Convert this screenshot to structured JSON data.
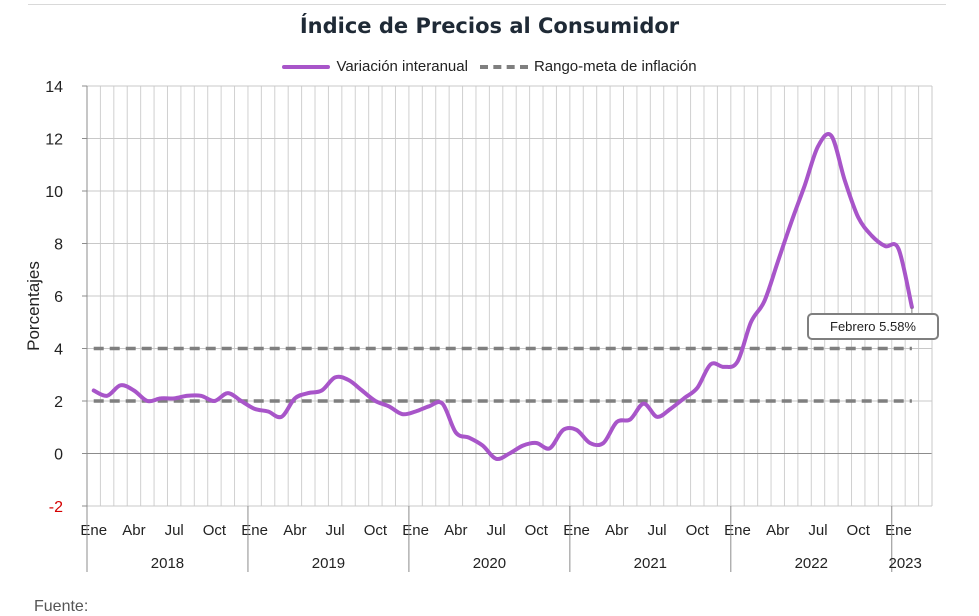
{
  "chart_data": {
    "type": "line",
    "title": "Índice de Precios al Consumidor",
    "ylabel": "Porcentajes",
    "xlabel": "",
    "ylim": [
      -2,
      14
    ],
    "yticks": [
      -2,
      0,
      2,
      4,
      6,
      8,
      10,
      12,
      14
    ],
    "grid": true,
    "legend_position": "top-center",
    "months": [
      "2018-01",
      "2018-02",
      "2018-03",
      "2018-04",
      "2018-05",
      "2018-06",
      "2018-07",
      "2018-08",
      "2018-09",
      "2018-10",
      "2018-11",
      "2018-12",
      "2019-01",
      "2019-02",
      "2019-03",
      "2019-04",
      "2019-05",
      "2019-06",
      "2019-07",
      "2019-08",
      "2019-09",
      "2019-10",
      "2019-11",
      "2019-12",
      "2020-01",
      "2020-02",
      "2020-03",
      "2020-04",
      "2020-05",
      "2020-06",
      "2020-07",
      "2020-08",
      "2020-09",
      "2020-10",
      "2020-11",
      "2020-12",
      "2021-01",
      "2021-02",
      "2021-03",
      "2021-04",
      "2021-05",
      "2021-06",
      "2021-07",
      "2021-08",
      "2021-09",
      "2021-10",
      "2021-11",
      "2021-12",
      "2022-01",
      "2022-02",
      "2022-03",
      "2022-04",
      "2022-05",
      "2022-06",
      "2022-07",
      "2022-08",
      "2022-09",
      "2022-10",
      "2022-11",
      "2022-12",
      "2023-01",
      "2023-02"
    ],
    "x_tick_labels": [
      "Ene",
      "Abr",
      "Jul",
      "Oct",
      "Ene",
      "Abr",
      "Jul",
      "Oct",
      "Ene",
      "Abr",
      "Jul",
      "Oct",
      "Ene",
      "Abr",
      "Jul",
      "Oct",
      "Ene",
      "Abr",
      "Jul",
      "Oct",
      "Ene"
    ],
    "x_tick_months": [
      "2018-01",
      "2018-04",
      "2018-07",
      "2018-10",
      "2019-01",
      "2019-04",
      "2019-07",
      "2019-10",
      "2020-01",
      "2020-04",
      "2020-07",
      "2020-10",
      "2021-01",
      "2021-04",
      "2021-07",
      "2021-10",
      "2022-01",
      "2022-04",
      "2022-07",
      "2022-10",
      "2023-01"
    ],
    "years": [
      {
        "label": "2018",
        "start": "2018-01",
        "end": "2018-12"
      },
      {
        "label": "2019",
        "start": "2019-01",
        "end": "2019-12"
      },
      {
        "label": "2020",
        "start": "2020-01",
        "end": "2020-12"
      },
      {
        "label": "2021",
        "start": "2021-01",
        "end": "2021-12"
      },
      {
        "label": "2022",
        "start": "2022-01",
        "end": "2022-12"
      },
      {
        "label": "2023",
        "start": "2023-01",
        "end": "2023-02"
      }
    ],
    "series": [
      {
        "name": "Variación interanual",
        "color": "#a855c9",
        "style": "solid",
        "values": [
          2.4,
          2.2,
          2.6,
          2.4,
          2.0,
          2.1,
          2.1,
          2.2,
          2.2,
          2.0,
          2.3,
          2.0,
          1.7,
          1.6,
          1.4,
          2.1,
          2.3,
          2.4,
          2.9,
          2.8,
          2.4,
          2.0,
          1.8,
          1.5,
          1.6,
          1.8,
          1.9,
          0.8,
          0.6,
          0.3,
          -0.2,
          0.0,
          0.3,
          0.4,
          0.2,
          0.9,
          0.9,
          0.4,
          0.4,
          1.2,
          1.3,
          1.9,
          1.4,
          1.7,
          2.1,
          2.5,
          3.4,
          3.3,
          3.5,
          5.0,
          5.8,
          7.3,
          8.8,
          10.2,
          11.7,
          12.1,
          10.4,
          9.0,
          8.3,
          7.9,
          7.8,
          5.58
        ]
      },
      {
        "name": "Rango-meta de inflación",
        "color": "#7f7f7f",
        "style": "dashed",
        "band": [
          2,
          4
        ]
      }
    ],
    "annotation": {
      "text": "Febrero 5.58%",
      "month": "2023-02",
      "value": 5.58
    }
  },
  "footer": {
    "source_label": "Fuente:"
  }
}
